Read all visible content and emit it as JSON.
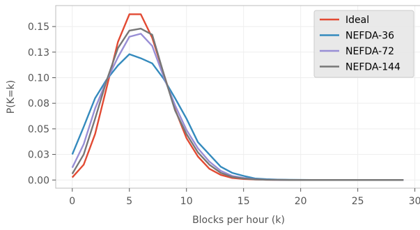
{
  "chart_data": {
    "type": "line",
    "xlabel": "Blocks per hour (k)",
    "ylabel": "P(K=k)",
    "xlim": [
      -1.45,
      30.45
    ],
    "ylim": [
      -0.008,
      0.1705
    ],
    "x_ticks": [
      0,
      5,
      10,
      15,
      20,
      25,
      30
    ],
    "y_ticks": [
      0.0,
      0.025,
      0.05,
      0.075,
      0.1,
      0.125,
      0.15
    ],
    "y_tick_labels": [
      "0.00",
      "0.03",
      "0.05",
      "0.08",
      "0.10",
      "0.13",
      "0.15"
    ],
    "grid": true,
    "legend_position": "top-right",
    "x": [
      0,
      1,
      2,
      3,
      4,
      5,
      6,
      7,
      8,
      9,
      10,
      11,
      12,
      13,
      14,
      15,
      16,
      17,
      18,
      19,
      20,
      21,
      22,
      23,
      24,
      25,
      26,
      27,
      28,
      29
    ],
    "series": [
      {
        "name": "Ideal",
        "color": "#e24a33",
        "values": [
          0.0025,
          0.015,
          0.045,
          0.09,
          0.135,
          0.162,
          0.162,
          0.139,
          0.104,
          0.069,
          0.041,
          0.023,
          0.011,
          0.005,
          0.002,
          0.001,
          0.0005,
          0.0002,
          0.0001,
          0,
          0,
          0,
          0,
          0,
          0,
          0,
          0,
          0,
          0,
          0
        ]
      },
      {
        "name": "NEFDA-36",
        "color": "#348abd",
        "values": [
          0.025,
          0.052,
          0.08,
          0.098,
          0.112,
          0.123,
          0.119,
          0.114,
          0.099,
          0.08,
          0.06,
          0.037,
          0.025,
          0.013,
          0.007,
          0.004,
          0.0015,
          0.0008,
          0.0004,
          0.0002,
          0.0001,
          0,
          0,
          0,
          0,
          0,
          0,
          0,
          0,
          0
        ]
      },
      {
        "name": "NEFDA-72",
        "color": "#988ed5",
        "values": [
          0.012,
          0.035,
          0.07,
          0.097,
          0.12,
          0.14,
          0.143,
          0.131,
          0.101,
          0.073,
          0.049,
          0.031,
          0.018,
          0.009,
          0.004,
          0.002,
          0.0008,
          0.0003,
          0.0001,
          0,
          0,
          0,
          0,
          0,
          0,
          0,
          0,
          0,
          0,
          0
        ]
      },
      {
        "name": "NEFDA-144",
        "color": "#777777",
        "values": [
          0.006,
          0.025,
          0.06,
          0.097,
          0.129,
          0.146,
          0.148,
          0.142,
          0.104,
          0.068,
          0.045,
          0.027,
          0.015,
          0.007,
          0.003,
          0.0015,
          0.0006,
          0.0002,
          0.0001,
          0,
          0,
          0,
          0,
          0,
          0,
          0,
          0,
          0,
          0,
          0
        ]
      }
    ]
  }
}
